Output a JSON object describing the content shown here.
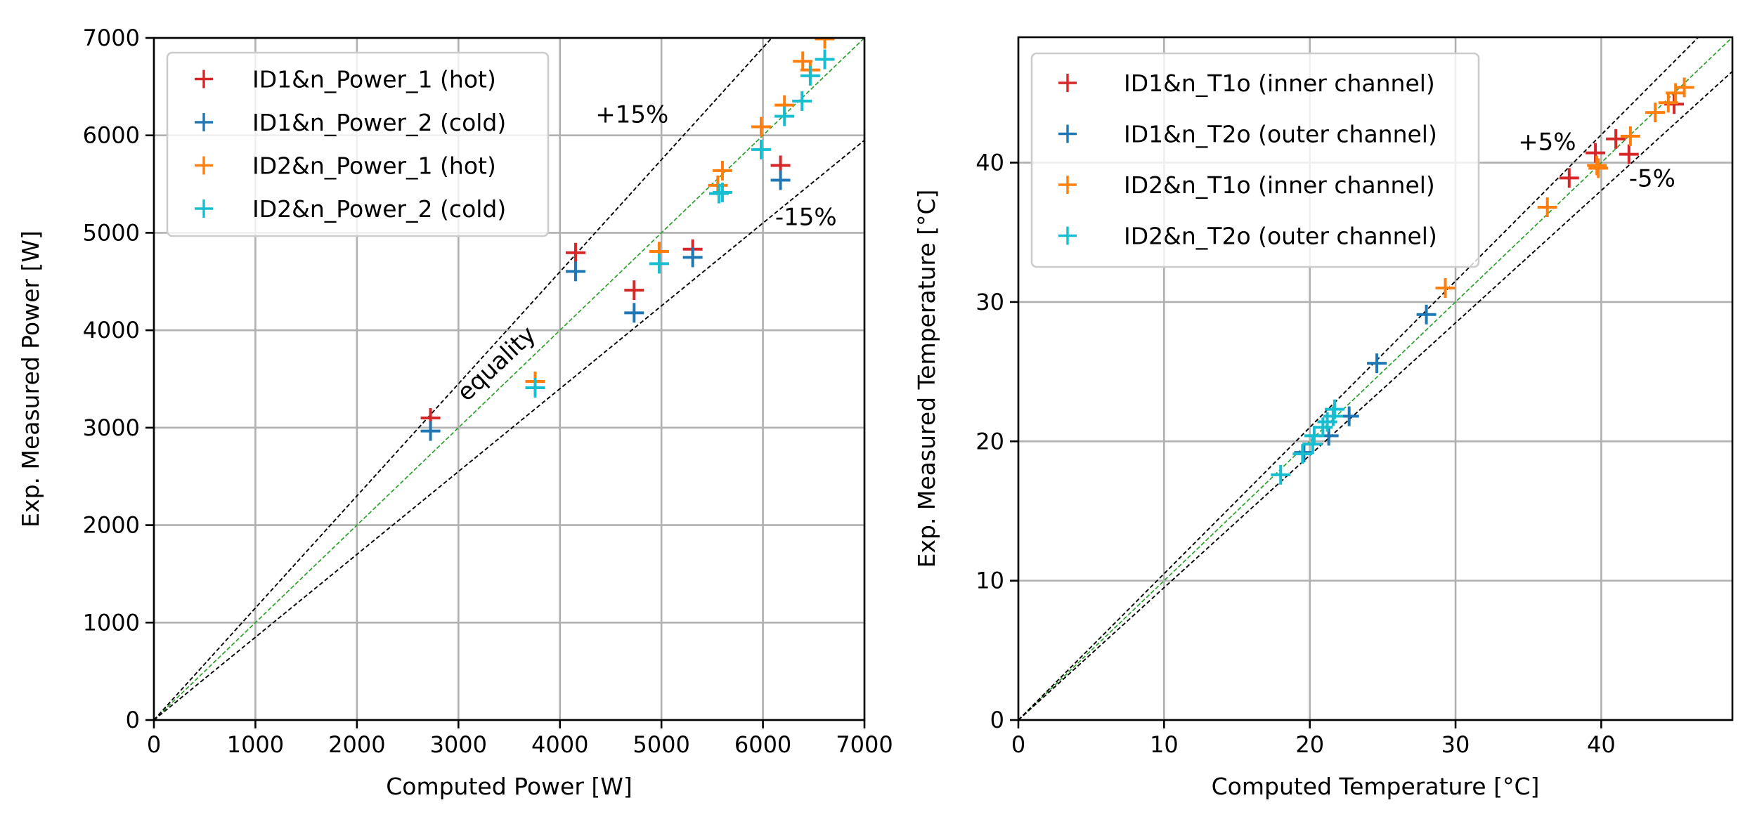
{
  "colors": {
    "red": "#d62728",
    "blue": "#1f77b4",
    "orange": "#ff7f0e",
    "cyan": "#17becf",
    "equality_line": "#2ca02c",
    "bound_line": "#000000",
    "grid": "#b0b0b0"
  },
  "chart_data": [
    {
      "type": "scatter",
      "title": "",
      "xlabel": "Computed Power [W]",
      "ylabel": "Exp. Measured Power [W]",
      "xlim": [
        0,
        7000
      ],
      "ylim": [
        0,
        7000
      ],
      "xticks": [
        0,
        1000,
        2000,
        3000,
        4000,
        5000,
        6000,
        7000
      ],
      "yticks": [
        0,
        1000,
        2000,
        3000,
        4000,
        5000,
        6000,
        7000
      ],
      "xtick_labels": [
        "0",
        "1000",
        "2000",
        "3000",
        "4000",
        "5000",
        "6000",
        "7000"
      ],
      "ytick_labels": [
        "0",
        "1000",
        "2000",
        "3000",
        "4000",
        "5000",
        "6000",
        "7000"
      ],
      "grid": true,
      "legend_position": "top-left",
      "reference_lines": [
        {
          "name": "equality",
          "slope": 1.0,
          "color": "#2ca02c"
        },
        {
          "name": "+15%",
          "slope": 1.15,
          "color": "#000000"
        },
        {
          "name": "-15%",
          "slope": 0.85,
          "color": "#000000"
        }
      ],
      "annotations": [
        {
          "text": "+15%",
          "x": 4350,
          "y": 6130,
          "rotation": 0
        },
        {
          "text": "-15%",
          "x": 6120,
          "y": 5080,
          "rotation": 0
        },
        {
          "text": "equality",
          "x": 3080,
          "y": 3260,
          "rotation": -43
        }
      ],
      "series": [
        {
          "name": "ID1&n_Power_1 (hot)",
          "color": "#d62728",
          "points": [
            [
              2725,
              3100
            ],
            [
              4154,
              4796
            ],
            [
              4731,
              4411
            ],
            [
              5308,
              4832
            ],
            [
              6173,
              5692
            ]
          ]
        },
        {
          "name": "ID1&n_Power_2 (cold)",
          "color": "#1f77b4",
          "points": [
            [
              2725,
              2966
            ],
            [
              4154,
              4604
            ],
            [
              4731,
              4179
            ],
            [
              5308,
              4748
            ],
            [
              6173,
              5540
            ]
          ]
        },
        {
          "name": "ID2&n_Power_1 (hot)",
          "color": "#ff7f0e",
          "points": [
            [
              3756,
              3475
            ],
            [
              4978,
              4808
            ],
            [
              5555,
              5487
            ],
            [
              5601,
              5638
            ],
            [
              5982,
              6088
            ],
            [
              6212,
              6311
            ],
            [
              6392,
              6760
            ],
            [
              6466,
              6671
            ],
            [
              6609,
              6990
            ]
          ]
        },
        {
          "name": "ID2&n_Power_2 (cold)",
          "color": "#17becf",
          "points": [
            [
              3756,
              3410
            ],
            [
              4978,
              4683
            ],
            [
              5566,
              5403
            ],
            [
              5601,
              5415
            ],
            [
              5982,
              5855
            ],
            [
              6212,
              6196
            ],
            [
              6385,
              6352
            ],
            [
              6466,
              6612
            ],
            [
              6609,
              6780
            ]
          ]
        }
      ]
    },
    {
      "type": "scatter",
      "title": "",
      "xlabel": "Computed Temperature [°C]",
      "ylabel": "Exp. Measured Temperature [°C]",
      "xlim": [
        0,
        49
      ],
      "ylim": [
        0,
        49
      ],
      "xticks": [
        0,
        10,
        20,
        30,
        40
      ],
      "yticks": [
        0,
        10,
        20,
        30,
        40
      ],
      "xtick_labels": [
        "0",
        "10",
        "20",
        "30",
        "40"
      ],
      "ytick_labels": [
        "0",
        "10",
        "20",
        "30",
        "40"
      ],
      "grid": true,
      "legend_position": "top-left",
      "reference_lines": [
        {
          "name": "equality",
          "slope": 1.0,
          "color": "#2ca02c"
        },
        {
          "name": "+5%",
          "slope": 1.05,
          "color": "#000000"
        },
        {
          "name": "-5%",
          "slope": 0.95,
          "color": "#000000"
        }
      ],
      "annotations": [
        {
          "text": "+5%",
          "x": 34.3,
          "y": 40.9,
          "rotation": 0
        },
        {
          "text": "-5%",
          "x": 41.9,
          "y": 38.3,
          "rotation": 0
        }
      ],
      "series": [
        {
          "name": "ID1&n_T1o (inner channel)",
          "color": "#d62728",
          "points": [
            [
              37.8,
              38.9
            ],
            [
              39.6,
              40.7
            ],
            [
              41.0,
              41.7
            ],
            [
              41.9,
              40.6
            ],
            [
              45.0,
              44.2
            ]
          ]
        },
        {
          "name": "ID1&n_T2o (outer channel)",
          "color": "#1f77b4",
          "points": [
            [
              19.6,
              19.2
            ],
            [
              21.3,
              20.4
            ],
            [
              22.7,
              21.8
            ],
            [
              24.6,
              25.6
            ],
            [
              28.0,
              29.1
            ]
          ]
        },
        {
          "name": "ID2&n_T1o (inner channel)",
          "color": "#ff7f0e",
          "points": [
            [
              29.3,
              31.0
            ],
            [
              36.3,
              36.8
            ],
            [
              39.7,
              39.8
            ],
            [
              39.8,
              39.6
            ],
            [
              42.0,
              41.9
            ],
            [
              43.7,
              43.6
            ],
            [
              44.6,
              44.3
            ],
            [
              45.1,
              45.0
            ],
            [
              45.7,
              45.4
            ]
          ]
        },
        {
          "name": "ID2&n_T2o (outer channel)",
          "color": "#17becf",
          "points": [
            [
              18.0,
              17.6
            ],
            [
              19.5,
              19.1
            ],
            [
              20.2,
              19.8
            ],
            [
              20.3,
              20.4
            ],
            [
              20.9,
              21.0
            ],
            [
              21.2,
              21.4
            ],
            [
              21.6,
              21.8
            ],
            [
              21.7,
              22.3
            ]
          ]
        }
      ]
    }
  ]
}
